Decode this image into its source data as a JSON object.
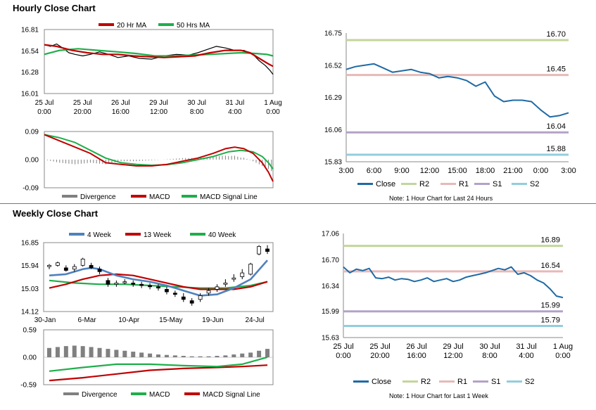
{
  "sections": {
    "hourly_title": "Hourly Close Chart",
    "weekly_title": "Weekly Close Chart"
  },
  "colors": {
    "red": "#c00000",
    "green": "#1fae4b",
    "blue": "#4f81bd",
    "dark_blue": "#1f6aa5",
    "gray": "#808080",
    "r2": "#c3d69b",
    "r1": "#e6b9b8",
    "s1": "#b3a2c7",
    "s2": "#93cddd"
  },
  "chart_data": [
    {
      "id": "hourly_price",
      "type": "line",
      "title": "Hourly Close Chart",
      "legend": [
        "20 Hr MA",
        "50 Hrs MA"
      ],
      "y_ticks": [
        "16.81",
        "16.54",
        "16.28",
        "16.01"
      ],
      "ylim": [
        16.01,
        16.81
      ],
      "x_ticks": [
        [
          "25 Jul",
          "0:00"
        ],
        [
          "25 Jul",
          "20:00"
        ],
        [
          "26 Jul",
          "16:00"
        ],
        [
          "29 Jul",
          "12:00"
        ],
        [
          "30 Jul",
          "8:00"
        ],
        [
          "31 Jul",
          "4:00"
        ],
        [
          "1 Aug",
          "0:00"
        ]
      ],
      "n": 150,
      "series": [
        {
          "name": "20 Hr MA",
          "color": "red",
          "points": [
            [
              0,
              16.62
            ],
            [
              8,
              16.6
            ],
            [
              18,
              16.55
            ],
            [
              28,
              16.52
            ],
            [
              38,
              16.5
            ],
            [
              48,
              16.5
            ],
            [
              58,
              16.48
            ],
            [
              68,
              16.47
            ],
            [
              78,
              16.46
            ],
            [
              88,
              16.47
            ],
            [
              98,
              16.48
            ],
            [
              108,
              16.52
            ],
            [
              118,
              16.55
            ],
            [
              128,
              16.55
            ],
            [
              134,
              16.52
            ],
            [
              140,
              16.45
            ],
            [
              146,
              16.38
            ],
            [
              149,
              16.35
            ]
          ]
        },
        {
          "name": "50 Hrs MA",
          "color": "green",
          "points": [
            [
              0,
              16.5
            ],
            [
              10,
              16.55
            ],
            [
              22,
              16.57
            ],
            [
              35,
              16.55
            ],
            [
              48,
              16.53
            ],
            [
              60,
              16.51
            ],
            [
              72,
              16.48
            ],
            [
              84,
              16.48
            ],
            [
              96,
              16.49
            ],
            [
              108,
              16.5
            ],
            [
              118,
              16.51
            ],
            [
              128,
              16.52
            ],
            [
              138,
              16.51
            ],
            [
              145,
              16.5
            ],
            [
              149,
              16.48
            ]
          ]
        },
        {
          "name": "Close",
          "color": "black",
          "points": [
            [
              0,
              16.62
            ],
            [
              4,
              16.6
            ],
            [
              8,
              16.63
            ],
            [
              12,
              16.58
            ],
            [
              16,
              16.52
            ],
            [
              20,
              16.5
            ],
            [
              25,
              16.48
            ],
            [
              30,
              16.5
            ],
            [
              36,
              16.53
            ],
            [
              42,
              16.5
            ],
            [
              48,
              16.46
            ],
            [
              55,
              16.48
            ],
            [
              62,
              16.45
            ],
            [
              70,
              16.44
            ],
            [
              78,
              16.48
            ],
            [
              86,
              16.5
            ],
            [
              94,
              16.49
            ],
            [
              100,
              16.52
            ],
            [
              106,
              16.56
            ],
            [
              112,
              16.6
            ],
            [
              118,
              16.58
            ],
            [
              124,
              16.55
            ],
            [
              130,
              16.55
            ],
            [
              136,
              16.5
            ],
            [
              140,
              16.42
            ],
            [
              144,
              16.36
            ],
            [
              147,
              16.3
            ],
            [
              149,
              16.25
            ]
          ]
        }
      ]
    },
    {
      "id": "hourly_macd",
      "type": "line",
      "legend": [
        "Divergence",
        "MACD",
        "MACD Signal Line"
      ],
      "y_ticks": [
        "0.09",
        "0.00",
        "-0.09"
      ],
      "ylim": [
        -0.09,
        0.09
      ],
      "n": 150,
      "macd": [
        [
          0,
          0.08
        ],
        [
          10,
          0.06
        ],
        [
          20,
          0.04
        ],
        [
          30,
          0.02
        ],
        [
          40,
          -0.01
        ],
        [
          50,
          -0.015
        ],
        [
          60,
          -0.02
        ],
        [
          70,
          -0.02
        ],
        [
          80,
          -0.015
        ],
        [
          90,
          -0.005
        ],
        [
          100,
          0.005
        ],
        [
          110,
          0.02
        ],
        [
          118,
          0.035
        ],
        [
          124,
          0.04
        ],
        [
          130,
          0.035
        ],
        [
          136,
          0.02
        ],
        [
          142,
          -0.01
        ],
        [
          146,
          -0.04
        ],
        [
          149,
          -0.07
        ]
      ],
      "signal": [
        [
          0,
          0.08
        ],
        [
          10,
          0.07
        ],
        [
          20,
          0.055
        ],
        [
          30,
          0.03
        ],
        [
          40,
          0.005
        ],
        [
          50,
          -0.01
        ],
        [
          60,
          -0.015
        ],
        [
          70,
          -0.018
        ],
        [
          80,
          -0.016
        ],
        [
          90,
          -0.01
        ],
        [
          100,
          0.0
        ],
        [
          110,
          0.01
        ],
        [
          120,
          0.025
        ],
        [
          128,
          0.03
        ],
        [
          136,
          0.025
        ],
        [
          142,
          0.01
        ],
        [
          146,
          -0.01
        ],
        [
          149,
          -0.03
        ]
      ]
    },
    {
      "id": "hourly_pivot",
      "type": "line",
      "y_ticks": [
        "16.75",
        "16.52",
        "16.29",
        "16.06",
        "15.83"
      ],
      "ylim": [
        15.83,
        16.75
      ],
      "x_ticks": [
        "3:00",
        "6:00",
        "9:00",
        "12:00",
        "15:00",
        "18:00",
        "21:00",
        "0:00",
        "3:00"
      ],
      "close": [
        16.49,
        16.51,
        16.52,
        16.53,
        16.5,
        16.47,
        16.48,
        16.49,
        16.47,
        16.46,
        16.43,
        16.44,
        16.43,
        16.41,
        16.37,
        16.4,
        16.3,
        16.26,
        16.27,
        16.27,
        16.26,
        16.2,
        16.15,
        16.16,
        16.18
      ],
      "levels": [
        {
          "name": "R2",
          "value": 16.7,
          "label": "16.70",
          "color": "r2"
        },
        {
          "name": "R1",
          "value": 16.45,
          "label": "16.45",
          "color": "r1"
        },
        {
          "name": "S1",
          "value": 16.04,
          "label": "16.04",
          "color": "s1"
        },
        {
          "name": "S2",
          "value": 15.88,
          "label": "15.88",
          "color": "s2"
        }
      ],
      "legend": [
        "Close",
        "R2",
        "R1",
        "S1",
        "S2"
      ],
      "note": "Note: 1 Hour Chart for Last 24 Hours"
    },
    {
      "id": "weekly_price",
      "type": "line",
      "title": "Weekly Close Chart",
      "legend": [
        "4 Week",
        "13 Week",
        "40 Week"
      ],
      "y_ticks": [
        "16.85",
        "15.94",
        "15.03",
        "14.12"
      ],
      "ylim": [
        14.12,
        16.85
      ],
      "x_ticks": [
        "30-Jan",
        "6-Mar",
        "10-Apr",
        "15-May",
        "19-Jun",
        "24-Jul"
      ],
      "n": 27,
      "candles": [
        [
          15.9,
          15.95,
          15.8,
          16.0
        ],
        [
          15.95,
          16.05,
          15.9,
          16.1
        ],
        [
          15.85,
          15.75,
          15.7,
          15.95
        ],
        [
          15.8,
          15.9,
          15.7,
          16.0
        ],
        [
          15.95,
          16.2,
          15.9,
          16.25
        ],
        [
          15.95,
          15.85,
          15.8,
          16.05
        ],
        [
          15.8,
          15.7,
          15.6,
          15.9
        ],
        [
          15.35,
          15.2,
          15.1,
          15.45
        ],
        [
          15.2,
          15.25,
          15.1,
          15.35
        ],
        [
          15.3,
          15.3,
          15.2,
          15.4
        ],
        [
          15.25,
          15.2,
          15.1,
          15.35
        ],
        [
          15.2,
          15.15,
          15.05,
          15.3
        ],
        [
          15.15,
          15.1,
          15.0,
          15.25
        ],
        [
          15.1,
          15.05,
          14.95,
          15.2
        ],
        [
          15.0,
          14.9,
          14.8,
          15.1
        ],
        [
          14.85,
          14.8,
          14.7,
          14.95
        ],
        [
          14.7,
          14.6,
          14.5,
          14.85
        ],
        [
          14.55,
          14.45,
          14.35,
          14.65
        ],
        [
          14.6,
          14.75,
          14.5,
          14.85
        ],
        [
          14.85,
          14.95,
          14.75,
          15.05
        ],
        [
          15.0,
          15.1,
          14.9,
          15.2
        ],
        [
          15.2,
          15.25,
          15.1,
          15.4
        ],
        [
          15.4,
          15.45,
          15.3,
          15.6
        ],
        [
          15.5,
          15.65,
          15.4,
          15.8
        ],
        [
          15.6,
          16.0,
          15.55,
          16.05
        ],
        [
          16.4,
          16.7,
          16.35,
          16.75
        ],
        [
          16.6,
          16.5,
          16.4,
          16.75
        ]
      ],
      "series": [
        {
          "name": "4 Week",
          "color": "blue",
          "points": [
            [
              0,
              15.55
            ],
            [
              2,
              15.6
            ],
            [
              4,
              15.8
            ],
            [
              5,
              15.85
            ],
            [
              6,
              15.8
            ],
            [
              8,
              15.55
            ],
            [
              10,
              15.4
            ],
            [
              12,
              15.3
            ],
            [
              14,
              15.15
            ],
            [
              16,
              14.95
            ],
            [
              18,
              14.75
            ],
            [
              20,
              14.8
            ],
            [
              22,
              15.05
            ],
            [
              24,
              15.4
            ],
            [
              26,
              16.15
            ]
          ]
        },
        {
          "name": "13 Week",
          "color": "red",
          "points": [
            [
              0,
              15.05
            ],
            [
              2,
              15.2
            ],
            [
              4,
              15.4
            ],
            [
              6,
              15.55
            ],
            [
              8,
              15.6
            ],
            [
              10,
              15.55
            ],
            [
              12,
              15.4
            ],
            [
              14,
              15.25
            ],
            [
              16,
              15.1
            ],
            [
              18,
              15.0
            ],
            [
              20,
              15.0
            ],
            [
              22,
              15.0
            ],
            [
              24,
              15.1
            ],
            [
              26,
              15.3
            ]
          ]
        },
        {
          "name": "40 Week",
          "color": "green",
          "points": [
            [
              0,
              15.35
            ],
            [
              3,
              15.25
            ],
            [
              6,
              15.2
            ],
            [
              9,
              15.2
            ],
            [
              12,
              15.15
            ],
            [
              15,
              15.1
            ],
            [
              18,
              15.05
            ],
            [
              21,
              15.05
            ],
            [
              24,
              15.15
            ],
            [
              26,
              15.3
            ]
          ]
        }
      ]
    },
    {
      "id": "weekly_macd",
      "type": "bar",
      "legend": [
        "Divergence",
        "MACD",
        "MACD Signal Line"
      ],
      "y_ticks": [
        "0.59",
        "0.00",
        "-0.59"
      ],
      "ylim": [
        -0.59,
        0.59
      ],
      "n": 27,
      "divergence": [
        0.2,
        0.22,
        0.24,
        0.25,
        0.24,
        0.22,
        0.2,
        0.18,
        0.16,
        0.14,
        0.12,
        0.1,
        0.08,
        0.06,
        0.05,
        0.04,
        0.03,
        0.02,
        0.02,
        0.02,
        0.03,
        0.04,
        0.06,
        0.08,
        0.1,
        0.14,
        0.18
      ],
      "macd": [
        [
          0,
          -0.3
        ],
        [
          4,
          -0.22
        ],
        [
          8,
          -0.15
        ],
        [
          12,
          -0.15
        ],
        [
          16,
          -0.18
        ],
        [
          20,
          -0.2
        ],
        [
          23,
          -0.15
        ],
        [
          26,
          0.0
        ]
      ],
      "signal": [
        [
          0,
          -0.5
        ],
        [
          4,
          -0.44
        ],
        [
          8,
          -0.36
        ],
        [
          12,
          -0.28
        ],
        [
          16,
          -0.24
        ],
        [
          20,
          -0.22
        ],
        [
          23,
          -0.2
        ],
        [
          26,
          -0.17
        ]
      ]
    },
    {
      "id": "weekly_pivot",
      "type": "line",
      "y_ticks": [
        "17.06",
        "16.70",
        "16.34",
        "15.99",
        "15.63"
      ],
      "ylim": [
        15.63,
        17.06
      ],
      "x_ticks": [
        [
          "25 Jul",
          "0:00"
        ],
        [
          "25 Jul",
          "20:00"
        ],
        [
          "26 Jul",
          "16:00"
        ],
        [
          "29 Jul",
          "12:00"
        ],
        [
          "30 Jul",
          "8:00"
        ],
        [
          "31 Jul",
          "4:00"
        ],
        [
          "1 Aug",
          "0:00"
        ]
      ],
      "close": [
        16.6,
        16.52,
        16.57,
        16.55,
        16.58,
        16.45,
        16.44,
        16.46,
        16.42,
        16.44,
        16.43,
        16.4,
        16.42,
        16.45,
        16.4,
        16.42,
        16.44,
        16.4,
        16.42,
        16.46,
        16.48,
        16.5,
        16.52,
        16.55,
        16.58,
        16.56,
        16.6,
        16.5,
        16.52,
        16.48,
        16.42,
        16.38,
        16.3,
        16.2,
        16.18
      ],
      "levels": [
        {
          "name": "R2",
          "value": 16.89,
          "label": "16.89",
          "color": "r2"
        },
        {
          "name": "R1",
          "value": 16.54,
          "label": "16.54",
          "color": "r1"
        },
        {
          "name": "S1",
          "value": 15.99,
          "label": "15.99",
          "color": "s1"
        },
        {
          "name": "S2",
          "value": 15.79,
          "label": "15.79",
          "color": "s2"
        }
      ],
      "legend": [
        "Close",
        "R2",
        "R1",
        "S1",
        "S2"
      ],
      "note": "Note: 1 Hour Chart for Last 1 Week"
    }
  ]
}
